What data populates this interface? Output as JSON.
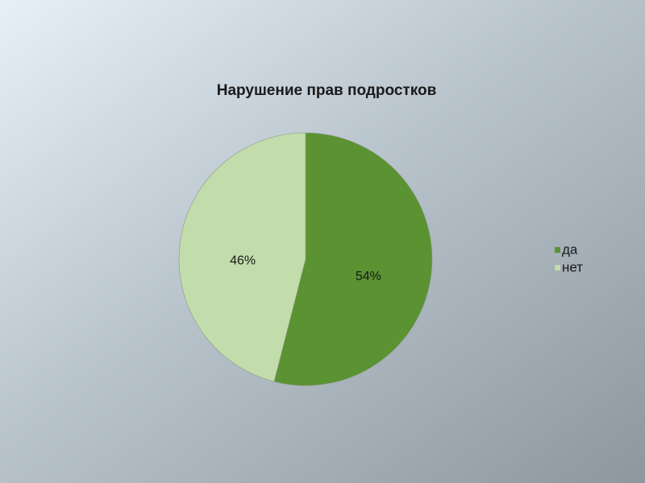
{
  "chart_data": {
    "type": "pie",
    "title": "Нарушение прав подростков",
    "categories": [
      "да",
      "нет"
    ],
    "values": [
      54,
      46
    ],
    "value_labels": [
      "54%",
      "46%"
    ],
    "colors": [
      "#5b9232",
      "#c2dcab"
    ],
    "legend": "right"
  }
}
